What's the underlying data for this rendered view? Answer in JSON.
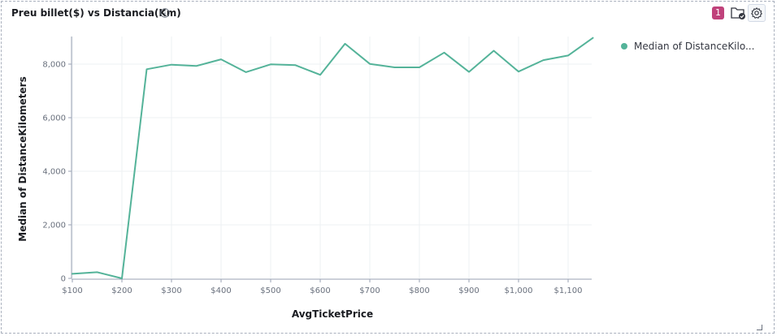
{
  "panel": {
    "title": "Preu billet($) vs Distancia(Km)",
    "badge_count": "1",
    "icons": [
      "info-icon",
      "folder-check-icon",
      "gear-icon"
    ]
  },
  "colors": {
    "series": "#54b399",
    "grid": "#eef0f3",
    "axis": "#98a2b3",
    "tick_text": "#69707d",
    "label_text": "#1a1c21",
    "badge": "#c0427b"
  },
  "chart_data": {
    "type": "line",
    "title": "",
    "xlabel": "AvgTicketPrice",
    "ylabel": "Median of DistanceKilometers",
    "x_ticks": [
      100,
      200,
      300,
      400,
      500,
      600,
      700,
      800,
      900,
      1000,
      1100
    ],
    "x_tick_labels": [
      "$100",
      "$200",
      "$300",
      "$400",
      "$500",
      "$600",
      "$700",
      "$800",
      "$900",
      "$1,000",
      "$1,100"
    ],
    "y_ticks": [
      0,
      2000,
      4000,
      6000,
      8000
    ],
    "y_tick_labels": [
      "0",
      "2,000",
      "4,000",
      "6,000",
      "8,000"
    ],
    "xlim": [
      100,
      1150
    ],
    "ylim": [
      0,
      9000
    ],
    "grid": true,
    "legend_position": "top-right",
    "series": [
      {
        "name": "Median of DistanceKilo...",
        "x": [
          100,
          150,
          200,
          250,
          300,
          350,
          400,
          450,
          500,
          550,
          600,
          650,
          700,
          750,
          800,
          850,
          900,
          950,
          1000,
          1050,
          1100,
          1150
        ],
        "y": [
          170,
          230,
          0,
          7810,
          7980,
          7930,
          8180,
          7700,
          7990,
          7960,
          7600,
          8760,
          8010,
          7880,
          7880,
          8430,
          7710,
          8500,
          7720,
          8150,
          8320,
          8980
        ]
      }
    ]
  }
}
